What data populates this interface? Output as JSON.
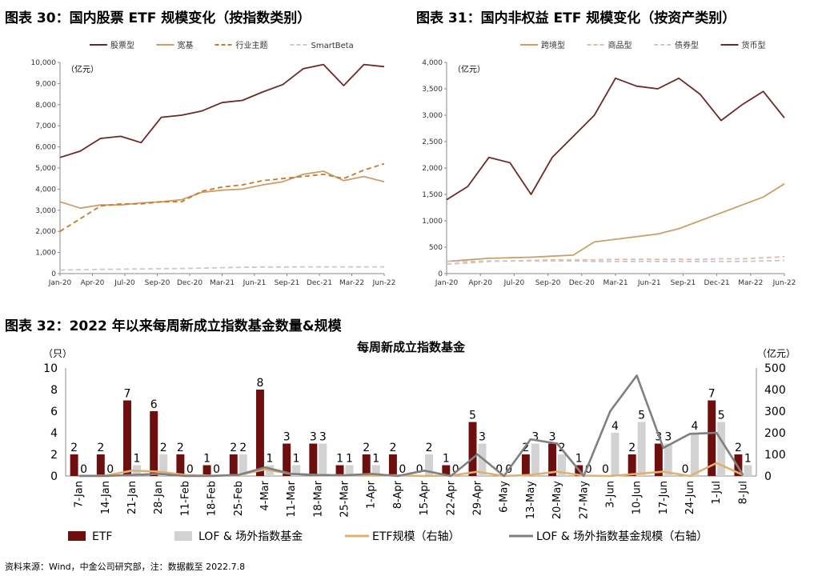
{
  "figure30": {
    "title": "图表 30：国内股票 ETF 规模变化（按指数类别）",
    "chart_data": {
      "type": "line",
      "unit_label": "（亿元）",
      "ylim": [
        0,
        10000
      ],
      "yticks": [
        "0",
        "1,000",
        "2,000",
        "3,000",
        "4,000",
        "5,000",
        "6,000",
        "7,000",
        "8,000",
        "9,000",
        "10,000"
      ],
      "xticks": [
        "Jan-20",
        "Apr-20",
        "Jul-20",
        "Sep-20",
        "Dec-20",
        "Mar-21",
        "Jun-21",
        "Sep-21",
        "Dec-21",
        "Mar-22",
        "Jun-22"
      ],
      "legend_position": "top",
      "series": [
        {
          "name": "股票型",
          "color": "#6b2a24",
          "dash": "solid",
          "values": [
            5500,
            5800,
            6400,
            6500,
            6200,
            7400,
            7500,
            7700,
            8100,
            8200,
            8600,
            8950,
            9700,
            9900,
            8900,
            9900,
            9800
          ]
        },
        {
          "name": "宽基",
          "color": "#c9a06c",
          "dash": "solid",
          "values": [
            3400,
            3100,
            3250,
            3250,
            3350,
            3400,
            3500,
            3850,
            3950,
            4000,
            4200,
            4350,
            4700,
            4850,
            4400,
            4600,
            4350
          ]
        },
        {
          "name": "行业主题",
          "color": "#c77a2d",
          "dash": "dash",
          "values": [
            2000,
            2600,
            3200,
            3300,
            3300,
            3400,
            3400,
            3900,
            4100,
            4200,
            4400,
            4500,
            4600,
            4700,
            4500,
            4900,
            5200
          ]
        },
        {
          "name": "SmartBeta",
          "color": "#c8c8d2",
          "dash": "dash",
          "values": [
            170,
            180,
            200,
            210,
            220,
            230,
            240,
            260,
            280,
            300,
            310,
            310,
            320,
            320,
            320,
            320,
            320
          ]
        }
      ]
    }
  },
  "figure31": {
    "title": "图表 31：国内非权益 ETF 规模变化（按资产类别）",
    "chart_data": {
      "type": "line",
      "unit_label": "（亿元）",
      "ylim": [
        0,
        4000
      ],
      "yticks": [
        "0",
        "500",
        "1,000",
        "1,500",
        "2,000",
        "2,500",
        "3,000",
        "3,500",
        "4,000"
      ],
      "xticks": [
        "Jan-20",
        "Apr-20",
        "Jul-20",
        "Sep-20",
        "Dec-20",
        "Mar-21",
        "Jun-21",
        "Sep-21",
        "Dec-21",
        "Mar-22",
        "Jun-22"
      ],
      "legend_position": "top",
      "series": [
        {
          "name": "跨境型",
          "color": "#c9a06c",
          "dash": "solid",
          "values": [
            230,
            260,
            290,
            300,
            310,
            330,
            350,
            600,
            650,
            700,
            750,
            850,
            1000,
            1150,
            1300,
            1450,
            1700
          ]
        },
        {
          "name": "商品型",
          "color": "#e8b8a8",
          "dash": "dash",
          "values": [
            180,
            200,
            230,
            240,
            250,
            260,
            260,
            260,
            270,
            270,
            270,
            270,
            270,
            280,
            280,
            300,
            320
          ]
        },
        {
          "name": "债券型",
          "color": "#c8c8d2",
          "dash": "dash",
          "values": [
            230,
            230,
            240,
            240,
            240,
            240,
            240,
            230,
            230,
            230,
            230,
            230,
            230,
            230,
            230,
            240,
            250
          ]
        },
        {
          "name": "货币型",
          "color": "#6b2a24",
          "dash": "solid",
          "values": [
            1400,
            1650,
            2200,
            2100,
            1500,
            2200,
            2600,
            3000,
            3700,
            3550,
            3500,
            3700,
            3400,
            2900,
            3200,
            3450,
            2950
          ]
        }
      ]
    }
  },
  "figure32": {
    "title": "图表 32：2022 年以来每周新成立指数基金数量&规模",
    "chart_data": {
      "type": "bar",
      "title": "每周新成立指数基金",
      "left_unit": "（只）",
      "right_unit": "（亿元）",
      "ylim_left": [
        0,
        10
      ],
      "ylim_right": [
        0,
        500
      ],
      "yticks_left": [
        "0",
        "2",
        "4",
        "6",
        "8",
        "10"
      ],
      "yticks_right": [
        "0",
        "100",
        "200",
        "300",
        "400",
        "500"
      ],
      "categories": [
        "7-Jan",
        "14-Jan",
        "21-Jan",
        "28-Jan",
        "11-Feb",
        "18-Feb",
        "25-Feb",
        "4-Mar",
        "11-Mar",
        "18-Mar",
        "25-Mar",
        "1-Apr",
        "8-Apr",
        "15-Apr",
        "22-Apr",
        "29-Apr",
        "6-May",
        "13-May",
        "20-May",
        "27-May",
        "3-Jun",
        "10-Jun",
        "17-Jun",
        "24-Jun",
        "1-Jul",
        "8-Jul"
      ],
      "legend_position": "bottom",
      "series": [
        {
          "name": "ETF",
          "type": "bar",
          "color": "#6e0f0f",
          "axis": "left",
          "values": [
            2,
            2,
            7,
            6,
            2,
            1,
            2,
            8,
            3,
            3,
            1,
            2,
            2,
            0,
            1,
            5,
            0,
            2,
            3,
            1,
            0,
            2,
            3,
            0,
            7,
            2
          ]
        },
        {
          "name": "LOF & 场外指数基金",
          "type": "bar",
          "color": "#d2d2d2",
          "axis": "left",
          "values": [
            0,
            0,
            1,
            2,
            0,
            0,
            2,
            1,
            1,
            3,
            1,
            1,
            0,
            2,
            0,
            3,
            0,
            3,
            2,
            0,
            4,
            5,
            3,
            4,
            5,
            1
          ]
        },
        {
          "name": "ETF规模（右轴）",
          "type": "line",
          "color": "#e0b070",
          "axis": "right",
          "values": [
            2,
            2,
            25,
            20,
            5,
            2,
            5,
            30,
            10,
            5,
            3,
            5,
            3,
            0,
            2,
            20,
            0,
            5,
            20,
            2,
            0,
            10,
            20,
            0,
            60,
            5
          ]
        },
        {
          "name": "LOF & 场外指数基金规模（右轴）",
          "type": "line",
          "color": "#808080",
          "axis": "right",
          "values": [
            0,
            0,
            5,
            10,
            0,
            0,
            5,
            40,
            10,
            5,
            3,
            10,
            0,
            25,
            0,
            100,
            0,
            170,
            150,
            0,
            300,
            465,
            130,
            195,
            200,
            5
          ]
        }
      ]
    }
  },
  "source": "资料来源：Wind，中金公司研究部，注：数据截至 2022.7.8"
}
